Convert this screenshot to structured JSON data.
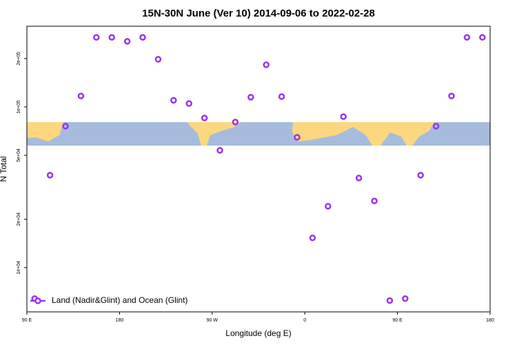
{
  "chart_data": {
    "type": "scatter",
    "title": "15N-30N June (Ver 10)   2014-09-06 to 2022-02-28",
    "xlabel": "Longitude (deg E)",
    "ylabel": "N Total",
    "log_y": true,
    "legend": "lower left",
    "xlim": [
      90,
      540
    ],
    "ylim": [
      5300,
      318000
    ],
    "xticks": [
      {
        "value": 90,
        "label": "90 E"
      },
      {
        "value": 180,
        "label": "180"
      },
      {
        "value": 270,
        "label": "90 W"
      },
      {
        "value": 360,
        "label": "0"
      },
      {
        "value": 450,
        "label": "90 E"
      },
      {
        "value": 540,
        "label": "180"
      }
    ],
    "yticks": [
      {
        "value": 10000,
        "label": "1e+04"
      },
      {
        "value": 20000,
        "label": "2e+04"
      },
      {
        "value": 50000,
        "label": "5e+04"
      },
      {
        "value": 100000,
        "label": "1e+05"
      },
      {
        "value": 200000,
        "label": "2e+05"
      }
    ],
    "series": [
      {
        "name": "Land (Nadir&Glint) and Ocean (Glint)",
        "color": "#9933ee",
        "x": [
          97.5,
          112.5,
          127.5,
          142.5,
          157.5,
          172.5,
          187.5,
          202.5,
          217.5,
          232.5,
          247.5,
          262.5,
          277.5,
          292.5,
          307.5,
          322.5,
          337.5,
          352.5,
          367.5,
          382.5,
          397.5,
          412.5,
          427.5,
          442.5,
          457.5,
          472.5,
          487.5,
          502.5,
          517.5,
          532.5
        ],
        "values": [
          6410,
          37600,
          75900,
          117000,
          271000,
          271000,
          256000,
          271000,
          198000,
          110000,
          105000,
          85300,
          53700,
          80500,
          115000,
          183000,
          116000,
          64700,
          15300,
          24100,
          87000,
          36100,
          26000,
          6230,
          6410,
          37600,
          75900,
          117000,
          271000,
          271000
        ]
      }
    ]
  }
}
